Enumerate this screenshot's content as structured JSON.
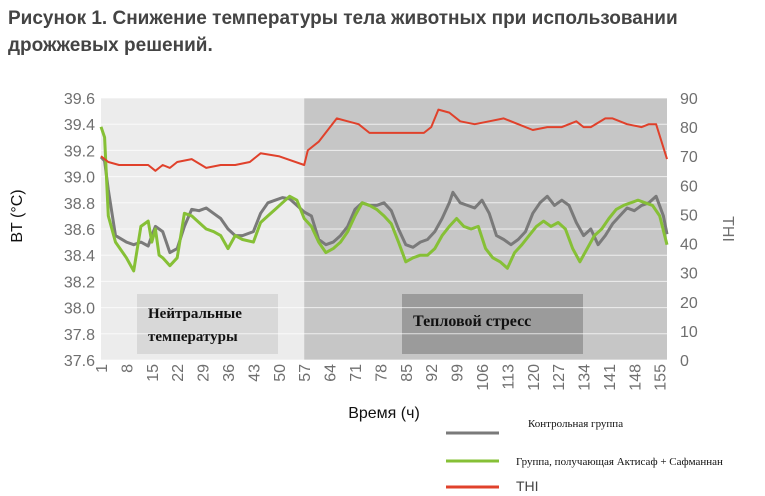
{
  "chart_data": {
    "type": "line",
    "title": "Рисунок 1. Снижение температуры тела животных при использовании дрожжевых решений.",
    "xlabel": "Время (ч)",
    "ylabel": "BT (°C)",
    "ylabel_right": "THI",
    "ylim": [
      37.6,
      39.6
    ],
    "ylim_right": [
      0,
      90
    ],
    "y_ticks": [
      "39.6",
      "39.4",
      "39.2",
      "39.0",
      "38.8",
      "38.6",
      "38.4",
      "38.2",
      "38.0",
      "37.8",
      "37.6"
    ],
    "y_right_ticks": [
      "90",
      "80",
      "70",
      "60",
      "50",
      "40",
      "30",
      "20",
      "10",
      "0"
    ],
    "x_ticks": [
      "1",
      "8",
      "15",
      "22",
      "29",
      "36",
      "43",
      "50",
      "57",
      "64",
      "71",
      "78",
      "85",
      "92",
      "99",
      "106",
      "113",
      "120",
      "127",
      "134",
      "141",
      "148",
      "155"
    ],
    "regions": [
      {
        "label_line1": "Нейтральные",
        "label_line2": "температуры",
        "x_start": 1,
        "x_end": 57,
        "color": "#ececec"
      },
      {
        "label": "Тепловой стресс",
        "x_start": 57,
        "x_end": 157,
        "color": "#c6c6c6"
      }
    ],
    "series": [
      {
        "name": "Контрольная группа",
        "axis": "left",
        "color": "#7a7a7a",
        "x": [
          1,
          2,
          3,
          5,
          8,
          10,
          12,
          14,
          15,
          16,
          18,
          20,
          22,
          24,
          26,
          28,
          30,
          32,
          34,
          36,
          38,
          40,
          43,
          45,
          47,
          49,
          51,
          53,
          55,
          57,
          59,
          61,
          63,
          65,
          67,
          69,
          71,
          73,
          75,
          77,
          79,
          81,
          83,
          85,
          87,
          89,
          91,
          93,
          95,
          97,
          98,
          100,
          102,
          104,
          106,
          108,
          110,
          112,
          114,
          116,
          118,
          120,
          122,
          124,
          126,
          128,
          130,
          132,
          134,
          136,
          138,
          140,
          142,
          144,
          146,
          148,
          150,
          152,
          154,
          156,
          157
        ],
        "values": [
          39.15,
          39.12,
          38.9,
          38.55,
          38.5,
          38.48,
          38.5,
          38.47,
          38.55,
          38.62,
          38.58,
          38.42,
          38.45,
          38.62,
          38.75,
          38.74,
          38.76,
          38.72,
          38.68,
          38.6,
          38.55,
          38.55,
          38.58,
          38.72,
          38.8,
          38.82,
          38.84,
          38.83,
          38.78,
          38.73,
          38.7,
          38.52,
          38.48,
          38.5,
          38.55,
          38.62,
          38.75,
          38.8,
          38.78,
          38.78,
          38.8,
          38.74,
          38.6,
          38.48,
          38.46,
          38.5,
          38.52,
          38.58,
          38.68,
          38.8,
          38.88,
          38.8,
          38.78,
          38.76,
          38.82,
          38.72,
          38.55,
          38.52,
          38.48,
          38.52,
          38.58,
          38.72,
          38.8,
          38.85,
          38.78,
          38.82,
          38.78,
          38.65,
          38.55,
          38.6,
          38.48,
          38.55,
          38.64,
          38.7,
          38.76,
          38.74,
          38.78,
          38.8,
          38.85,
          38.7,
          38.56
        ]
      },
      {
        "name": "Группа, получающая Актисаф + Сафманнан",
        "axis": "left",
        "color": "#86c036",
        "x": [
          1,
          2,
          3,
          5,
          8,
          10,
          12,
          14,
          15,
          16,
          17,
          18,
          20,
          22,
          24,
          26,
          28,
          30,
          32,
          34,
          36,
          38,
          40,
          43,
          45,
          47,
          49,
          51,
          53,
          55,
          57,
          59,
          61,
          63,
          65,
          67,
          69,
          71,
          73,
          75,
          77,
          79,
          81,
          83,
          85,
          87,
          89,
          91,
          93,
          95,
          97,
          99,
          101,
          103,
          105,
          107,
          109,
          111,
          113,
          115,
          117,
          119,
          121,
          123,
          125,
          127,
          129,
          131,
          133,
          135,
          137,
          139,
          141,
          143,
          145,
          147,
          149,
          151,
          153,
          155,
          157
        ],
        "values": [
          39.38,
          39.3,
          38.7,
          38.5,
          38.38,
          38.28,
          38.62,
          38.66,
          38.5,
          38.6,
          38.4,
          38.38,
          38.32,
          38.38,
          38.72,
          38.7,
          38.65,
          38.6,
          38.58,
          38.55,
          38.45,
          38.55,
          38.52,
          38.5,
          38.65,
          38.7,
          38.75,
          38.8,
          38.85,
          38.82,
          38.68,
          38.62,
          38.5,
          38.42,
          38.45,
          38.5,
          38.58,
          38.7,
          38.8,
          38.78,
          38.75,
          38.7,
          38.64,
          38.5,
          38.35,
          38.38,
          38.4,
          38.4,
          38.45,
          38.55,
          38.62,
          38.68,
          38.62,
          38.6,
          38.62,
          38.45,
          38.38,
          38.35,
          38.3,
          38.42,
          38.48,
          38.55,
          38.62,
          38.66,
          38.62,
          38.65,
          38.6,
          38.45,
          38.35,
          38.45,
          38.55,
          38.6,
          38.68,
          38.75,
          38.78,
          38.8,
          38.82,
          38.8,
          38.78,
          38.7,
          38.48
        ]
      },
      {
        "name": "THI",
        "axis": "right",
        "color": "#e0412b",
        "x": [
          1,
          3,
          6,
          10,
          14,
          16,
          18,
          20,
          22,
          26,
          30,
          34,
          38,
          42,
          45,
          50,
          57,
          58,
          61,
          66,
          69,
          72,
          75,
          78,
          81,
          85,
          90,
          92,
          94,
          97,
          100,
          104,
          108,
          112,
          116,
          120,
          124,
          128,
          132,
          134,
          136,
          140,
          142,
          146,
          150,
          152,
          154,
          157
        ],
        "values": [
          70,
          68,
          67,
          67,
          67,
          65,
          67,
          66,
          68,
          69,
          66,
          67,
          67,
          68,
          71,
          70,
          67,
          72,
          75,
          83,
          82,
          81,
          78,
          78,
          78,
          78,
          78,
          80,
          86,
          85,
          82,
          81,
          82,
          83,
          81,
          79,
          80,
          80,
          82,
          80,
          80,
          83,
          83,
          81,
          80,
          81,
          81,
          69
        ]
      }
    ],
    "legend_position": "bottom-right"
  }
}
